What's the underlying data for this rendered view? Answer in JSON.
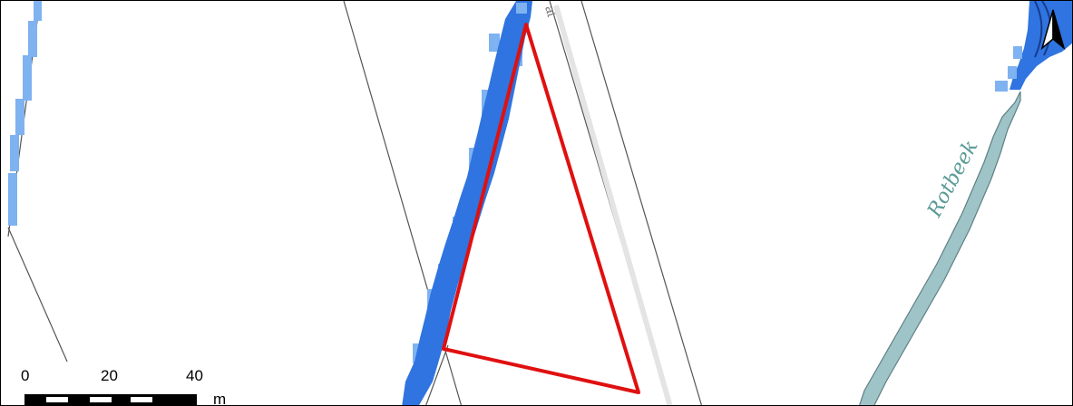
{
  "map": {
    "colors": {
      "flood_dark": "#2f74e0",
      "flood_light": "#7fb2f0",
      "parcel_line": "#555555",
      "road_fill": "#e4e4e4",
      "stream_fill": "#9ec4c8",
      "stream_edge": "#5f7f84",
      "stream_label": "#5a9b96",
      "triangle": "#e01010"
    },
    "labels": {
      "stream": "Rotbeek",
      "street_fragment": "at"
    },
    "scale_bar": {
      "ticks": [
        "0",
        "20",
        "40"
      ],
      "unit": "m"
    },
    "north_arrow": {
      "icon": "north-arrow-icon"
    }
  }
}
